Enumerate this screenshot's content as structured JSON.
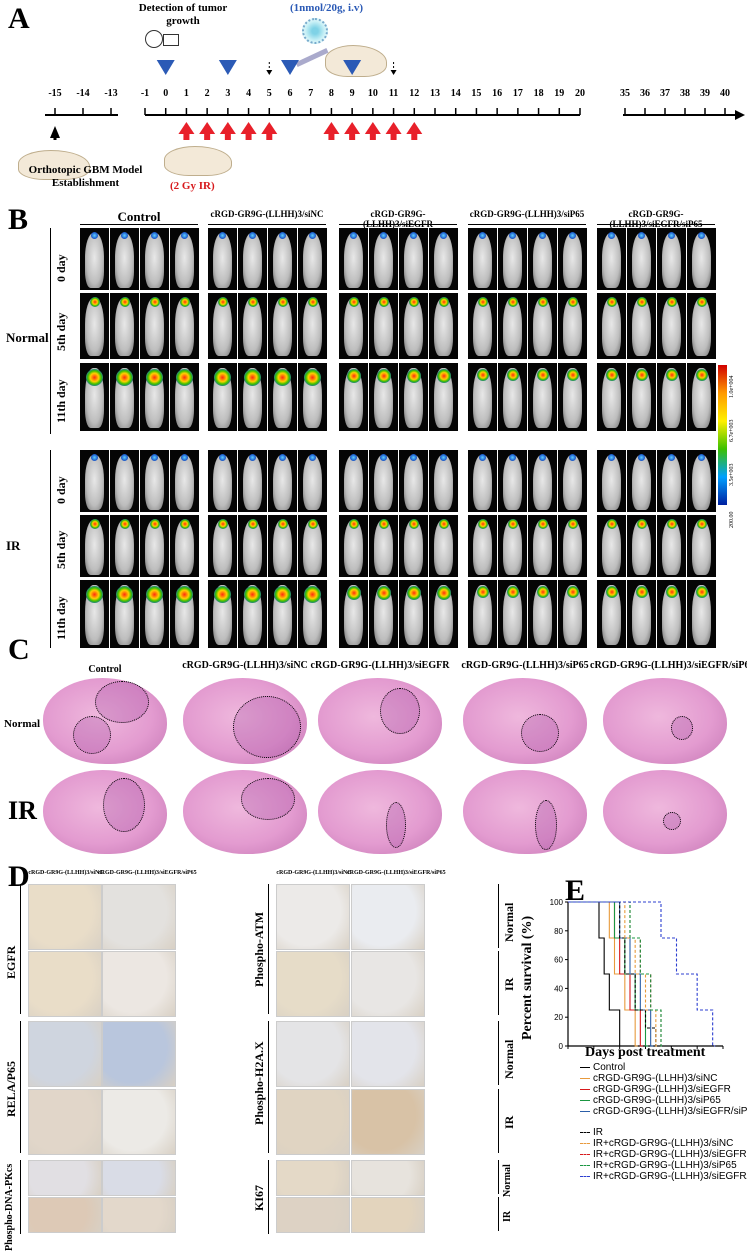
{
  "panels": {
    "a": "A",
    "b": "B",
    "c": "C",
    "d": "D",
    "e": "E"
  },
  "timeline": {
    "detection_label": "Detection of tumor growth",
    "injection_label": "(1nmol/20g, i.v)",
    "model_label": "Orthotopic GBM Model Establishment",
    "ir_label": "(2 Gy IR)",
    "ticks_left": [
      "-15",
      "-14",
      "-13"
    ],
    "ticks_main": [
      "-1",
      "0",
      "1",
      "2",
      "3",
      "4",
      "5",
      "6",
      "7",
      "8",
      "9",
      "10",
      "11",
      "12",
      "13",
      "14",
      "15",
      "16",
      "17",
      "18",
      "19",
      "20"
    ],
    "ticks_right": [
      "35",
      "36",
      "37",
      "38",
      "39",
      "40"
    ],
    "blue_arrows_days": [
      0,
      3,
      6,
      9
    ],
    "dashed_arrows_days": [
      5,
      11
    ],
    "red_arrows_days": [
      1,
      2,
      3,
      4,
      5,
      8,
      9,
      10,
      11,
      12
    ]
  },
  "panel_b": {
    "groups": [
      "Control",
      "cRGD-GR9G-(LLHH)3/siNC",
      "cRGD-GR9G-(LLHH)3/siEGFR",
      "cRGD-GR9G-(LLHH)3/siP65",
      "cRGD-GR9G-(LLHH)3/siEGFR/siP65"
    ],
    "conditions": [
      "Normal",
      "IR"
    ],
    "days": [
      "0 day",
      "5th day",
      "11th day"
    ],
    "scale_labels": [
      "1.0e+004",
      "6.7e+003",
      "3.5e+003",
      "200.00"
    ]
  },
  "panel_c": {
    "groups": [
      "Control",
      "cRGD-GR9G-(LLHH)3/siNC",
      "cRGD-GR9G-(LLHH)3/siEGFR",
      "cRGD-GR9G-(LLHH)3/siP65",
      "cRGD-GR9G-(LLHH)3/siEGFR/siP65"
    ],
    "rows": [
      "Normal",
      "IR"
    ]
  },
  "panel_d": {
    "col_left": [
      "cRGD-GR9G-(LLHH)3/siNC",
      "cRGD-GR9G-(LLHH)3/siEGFR/siP65"
    ],
    "col_right": [
      "cRGD-GR9G-(LLHH)3/siNC",
      "cRGD-GR9G-(LLHH)3/siEGFR/siP65"
    ],
    "markers_left": [
      "EGFR",
      "RELA/P65",
      "Phospho-DNA-PKcs"
    ],
    "markers_right": [
      "Phospho-ATM",
      "Phospho-H2A.X",
      "KI67"
    ],
    "conditions": [
      "Normal",
      "IR"
    ]
  },
  "chart_data": {
    "type": "line",
    "title": "",
    "xlabel": "Days post treatment",
    "ylabel": "Percent survival (%)",
    "xlim": [
      0,
      60
    ],
    "ylim": [
      0,
      100
    ],
    "xticks": [
      "0",
      "10",
      "20",
      "30",
      "40",
      "50",
      "60"
    ],
    "yticks": [
      "0",
      "20",
      "40",
      "60",
      "80",
      "100"
    ],
    "series": [
      {
        "name": "Control",
        "color": "#000000",
        "dash": false,
        "x": [
          0,
          12,
          14,
          16,
          20,
          25
        ],
        "y": [
          100,
          75,
          50,
          25,
          0,
          0
        ]
      },
      {
        "name": "cRGD-GR9G-(LLHH)3/siNC",
        "color": "#e89a3c",
        "dash": false,
        "x": [
          0,
          16,
          18,
          22,
          26
        ],
        "y": [
          100,
          75,
          50,
          25,
          0
        ]
      },
      {
        "name": "cRGD-GR9G-(LLHH)3/siEGFR",
        "color": "#d7191c",
        "dash": false,
        "x": [
          0,
          18,
          20,
          24,
          28
        ],
        "y": [
          100,
          75,
          50,
          25,
          0
        ]
      },
      {
        "name": "cRGD-GR9G-(LLHH)3/siP65",
        "color": "#1a9641",
        "dash": false,
        "x": [
          0,
          18,
          22,
          26,
          30
        ],
        "y": [
          100,
          75,
          50,
          25,
          0
        ]
      },
      {
        "name": "cRGD-GR9G-(LLHH)3/siEGFR/siP65",
        "color": "#2c5fa8",
        "dash": false,
        "x": [
          0,
          20,
          24,
          28,
          32
        ],
        "y": [
          100,
          75,
          50,
          25,
          0
        ]
      },
      {
        "name": "IR",
        "color": "#000000",
        "dash": true,
        "x": [
          0,
          20,
          22,
          26,
          30,
          34
        ],
        "y": [
          100,
          75,
          50,
          25,
          12.5,
          0
        ]
      },
      {
        "name": "IR+cRGD-GR9G-(LLHH)3/siNC",
        "color": "#e89a3c",
        "dash": true,
        "x": [
          0,
          22,
          26,
          30,
          34
        ],
        "y": [
          100,
          75,
          50,
          25,
          0
        ]
      },
      {
        "name": "IR+cRGD-GR9G-(LLHH)3/siEGFR",
        "color": "#d7191c",
        "dash": true,
        "x": [
          0,
          24,
          28,
          32,
          36
        ],
        "y": [
          100,
          75,
          50,
          25,
          0
        ]
      },
      {
        "name": "IR+cRGD-GR9G-(LLHH)3/siP65",
        "color": "#1a9641",
        "dash": true,
        "x": [
          0,
          24,
          28,
          32,
          36
        ],
        "y": [
          100,
          75,
          50,
          25,
          0
        ]
      },
      {
        "name": "IR+cRGD-GR9G-(LLHH)3/siEGFR/siP65",
        "color": "#2c3fd0",
        "dash": true,
        "x": [
          0,
          36,
          42,
          50,
          56
        ],
        "y": [
          100,
          75,
          50,
          25,
          0
        ]
      }
    ]
  }
}
